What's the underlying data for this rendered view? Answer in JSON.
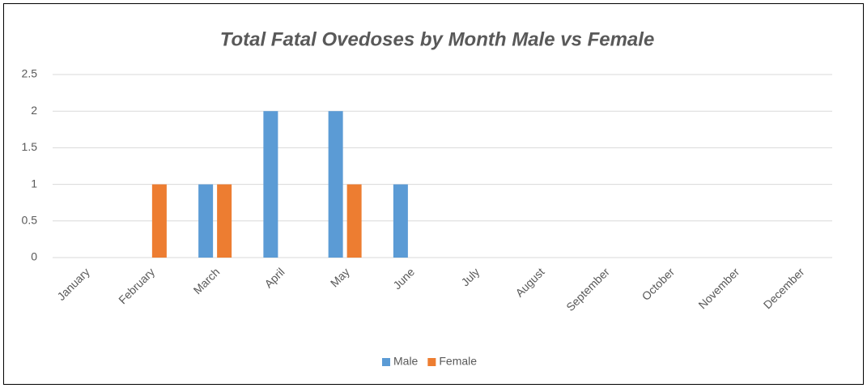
{
  "chart_data": {
    "type": "bar",
    "title": "Total Fatal Ovedoses by Month Male vs Female",
    "categories": [
      "January",
      "February",
      "March",
      "April",
      "May",
      "June",
      "July",
      "August",
      "September",
      "October",
      "November",
      "December"
    ],
    "series": [
      {
        "name": "Male",
        "color": "#5b9bd5",
        "values": [
          0,
          0,
          1,
          2,
          2,
          1,
          0,
          0,
          0,
          0,
          0,
          0
        ]
      },
      {
        "name": "Female",
        "color": "#ed7d31",
        "values": [
          0,
          1,
          1,
          0,
          1,
          0,
          0,
          0,
          0,
          0,
          0,
          0
        ]
      }
    ],
    "ylim": [
      0,
      2.5
    ],
    "yticks": [
      0,
      0.5,
      1,
      1.5,
      2,
      2.5
    ],
    "grid": true,
    "legend": "bottom"
  }
}
